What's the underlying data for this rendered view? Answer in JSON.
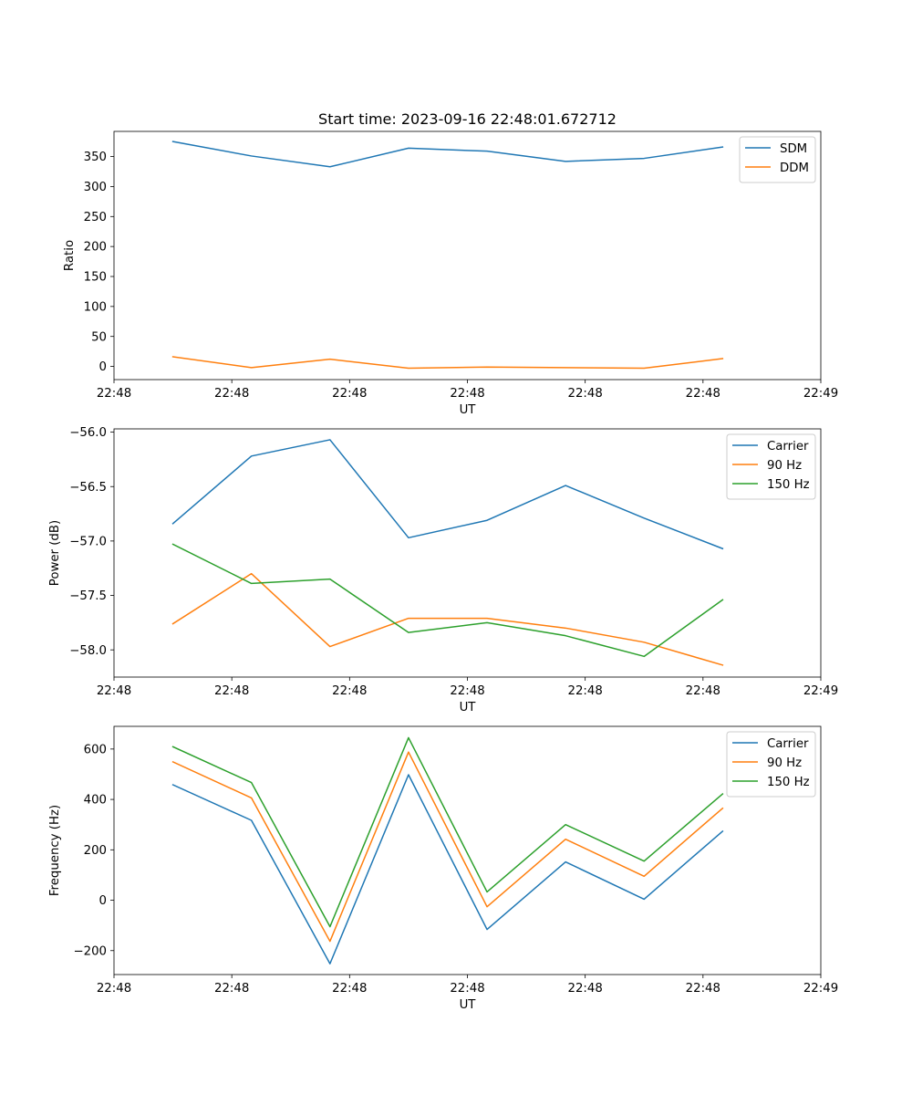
{
  "figure_title": "Start time: 2023-09-16 22:48:01.672712",
  "colors": {
    "blue": "#1f77b4",
    "orange": "#ff7f0e",
    "green": "#2ca02c"
  },
  "chart_data": [
    {
      "type": "line",
      "title": "Start time: 2023-09-16 22:48:01.672712",
      "xlabel": "UT",
      "ylabel": "Ratio",
      "x": [
        0,
        1,
        2,
        3,
        4,
        5,
        6,
        7
      ],
      "xlim": [
        -0.75,
        8.25
      ],
      "ylim": [
        -22,
        392
      ],
      "xticks": [
        -0.75,
        0.75,
        2.25,
        3.75,
        5.25,
        6.75,
        8.25
      ],
      "xtick_labels": [
        "22:48",
        "22:48",
        "22:48",
        "22:48",
        "22:48",
        "22:48",
        "22:49"
      ],
      "yticks": [
        0,
        50,
        100,
        150,
        200,
        250,
        300,
        350
      ],
      "ytick_labels": [
        "0",
        "50",
        "100",
        "150",
        "200",
        "250",
        "300",
        "350"
      ],
      "legend_position": "top-right",
      "series": [
        {
          "name": "SDM",
          "color": "#1f77b4",
          "values": [
            375,
            351,
            333,
            364,
            359,
            342,
            347,
            366
          ]
        },
        {
          "name": "DDM",
          "color": "#ff7f0e",
          "values": [
            16,
            -2,
            12,
            -3,
            -1,
            -2,
            -3,
            13
          ]
        }
      ]
    },
    {
      "type": "line",
      "title": "",
      "xlabel": "UT",
      "ylabel": "Power (dB)",
      "x": [
        0,
        1,
        2,
        3,
        4,
        5,
        6,
        7
      ],
      "xlim": [
        -0.75,
        8.25
      ],
      "ylim": [
        -58.25,
        -55.97
      ],
      "xticks": [
        -0.75,
        0.75,
        2.25,
        3.75,
        5.25,
        6.75,
        8.25
      ],
      "xtick_labels": [
        "22:48",
        "22:48",
        "22:48",
        "22:48",
        "22:48",
        "22:48",
        "22:49"
      ],
      "yticks": [
        -58.0,
        -57.5,
        -57.0,
        -56.5,
        -56.0
      ],
      "ytick_labels": [
        "−58.0",
        "−57.5",
        "−57.0",
        "−56.5",
        "−56.0"
      ],
      "legend_position": "top-right",
      "series": [
        {
          "name": "Carrier",
          "color": "#1f77b4",
          "values": [
            -56.84,
            -56.22,
            -56.07,
            -56.97,
            -56.81,
            -56.49,
            -56.79,
            -57.07
          ]
        },
        {
          "name": "90 Hz",
          "color": "#ff7f0e",
          "values": [
            -57.76,
            -57.3,
            -57.97,
            -57.71,
            -57.71,
            -57.8,
            -57.93,
            -58.14
          ]
        },
        {
          "name": "150 Hz",
          "color": "#2ca02c",
          "values": [
            -57.03,
            -57.39,
            -57.35,
            -57.84,
            -57.75,
            -57.87,
            -58.06,
            -57.54
          ]
        }
      ]
    },
    {
      "type": "line",
      "title": "",
      "xlabel": "UT",
      "ylabel": "Frequency (Hz)",
      "x": [
        0,
        1,
        2,
        3,
        4,
        5,
        6,
        7
      ],
      "xlim": [
        -0.75,
        8.25
      ],
      "ylim": [
        -295,
        690
      ],
      "xticks": [
        -0.75,
        0.75,
        2.25,
        3.75,
        5.25,
        6.75,
        8.25
      ],
      "xtick_labels": [
        "22:48",
        "22:48",
        "22:48",
        "22:48",
        "22:48",
        "22:48",
        "22:49"
      ],
      "yticks": [
        -200,
        0,
        200,
        400,
        600
      ],
      "ytick_labels": [
        "−200",
        "0",
        "200",
        "400",
        "600"
      ],
      "legend_position": "top-right",
      "series": [
        {
          "name": "Carrier",
          "color": "#1f77b4",
          "values": [
            458,
            317,
            -252,
            498,
            -116,
            152,
            4,
            274
          ]
        },
        {
          "name": "90 Hz",
          "color": "#ff7f0e",
          "values": [
            549,
            406,
            -163,
            588,
            -26,
            242,
            95,
            365
          ]
        },
        {
          "name": "150 Hz",
          "color": "#2ca02c",
          "values": [
            609,
            467,
            -105,
            645,
            33,
            300,
            155,
            422
          ]
        }
      ]
    }
  ]
}
